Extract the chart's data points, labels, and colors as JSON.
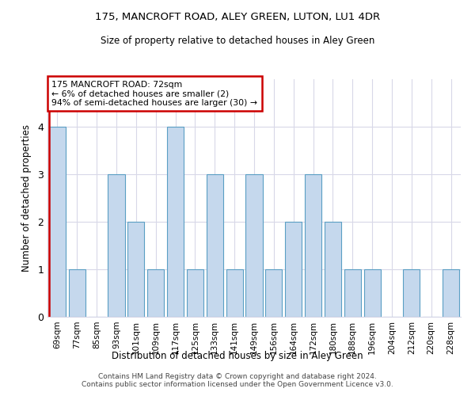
{
  "title1": "175, MANCROFT ROAD, ALEY GREEN, LUTON, LU1 4DR",
  "title2": "Size of property relative to detached houses in Aley Green",
  "xlabel": "Distribution of detached houses by size in Aley Green",
  "ylabel": "Number of detached properties",
  "categories": [
    "69sqm",
    "77sqm",
    "85sqm",
    "93sqm",
    "101sqm",
    "109sqm",
    "117sqm",
    "125sqm",
    "133sqm",
    "141sqm",
    "149sqm",
    "156sqm",
    "164sqm",
    "172sqm",
    "180sqm",
    "188sqm",
    "196sqm",
    "204sqm",
    "212sqm",
    "220sqm",
    "228sqm"
  ],
  "values": [
    4,
    1,
    0,
    3,
    2,
    1,
    4,
    1,
    3,
    1,
    3,
    1,
    2,
    3,
    2,
    1,
    1,
    0,
    1,
    0,
    1
  ],
  "bar_color": "#c5d8ed",
  "bar_edge_color": "#5a9fc4",
  "highlight_edge_color": "#cc0000",
  "annotation_text": "175 MANCROFT ROAD: 72sqm\n← 6% of detached houses are smaller (2)\n94% of semi-detached houses are larger (30) →",
  "annotation_box_color": "white",
  "annotation_box_edge_color": "#cc0000",
  "ylim": [
    0,
    5
  ],
  "yticks": [
    0,
    1,
    2,
    3,
    4
  ],
  "footer": "Contains HM Land Registry data © Crown copyright and database right 2024.\nContains public sector information licensed under the Open Government Licence v3.0.",
  "bg_color": "white",
  "grid_color": "#d8d8e8"
}
